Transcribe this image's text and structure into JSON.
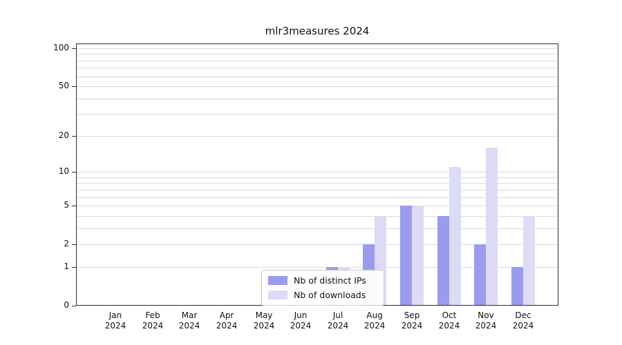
{
  "chart_data": {
    "type": "bar",
    "title": "mlr3measures 2024",
    "months": [
      "Jan",
      "Feb",
      "Mar",
      "Apr",
      "May",
      "Jun",
      "Jul",
      "Aug",
      "Sep",
      "Oct",
      "Nov",
      "Dec"
    ],
    "year": "2024",
    "series": [
      {
        "name": "Nb of distinct IPs",
        "key": "distinct-ips",
        "color": "#9b9bee",
        "values": [
          0,
          0,
          0,
          0,
          0,
          0,
          1,
          2,
          5,
          4,
          2,
          1
        ]
      },
      {
        "name": "Nb of downloads",
        "key": "downloads",
        "color": "#dcdcf7",
        "values": [
          0,
          0,
          0,
          0,
          0,
          0,
          1,
          4,
          5,
          11,
          16,
          4
        ]
      }
    ],
    "y_axis": {
      "scale": "log1p",
      "ticks": [
        0,
        1,
        2,
        5,
        10,
        20,
        50,
        100
      ],
      "max": 100
    },
    "gridline_values": [
      1,
      2,
      3,
      4,
      5,
      6,
      7,
      8,
      9,
      10,
      20,
      30,
      40,
      50,
      60,
      70,
      80,
      90,
      100
    ],
    "legend": {
      "position": "bottom-center"
    },
    "colors": {
      "gridline": "#dadada",
      "axis": "#2b2b2b",
      "text": "#111111"
    }
  }
}
